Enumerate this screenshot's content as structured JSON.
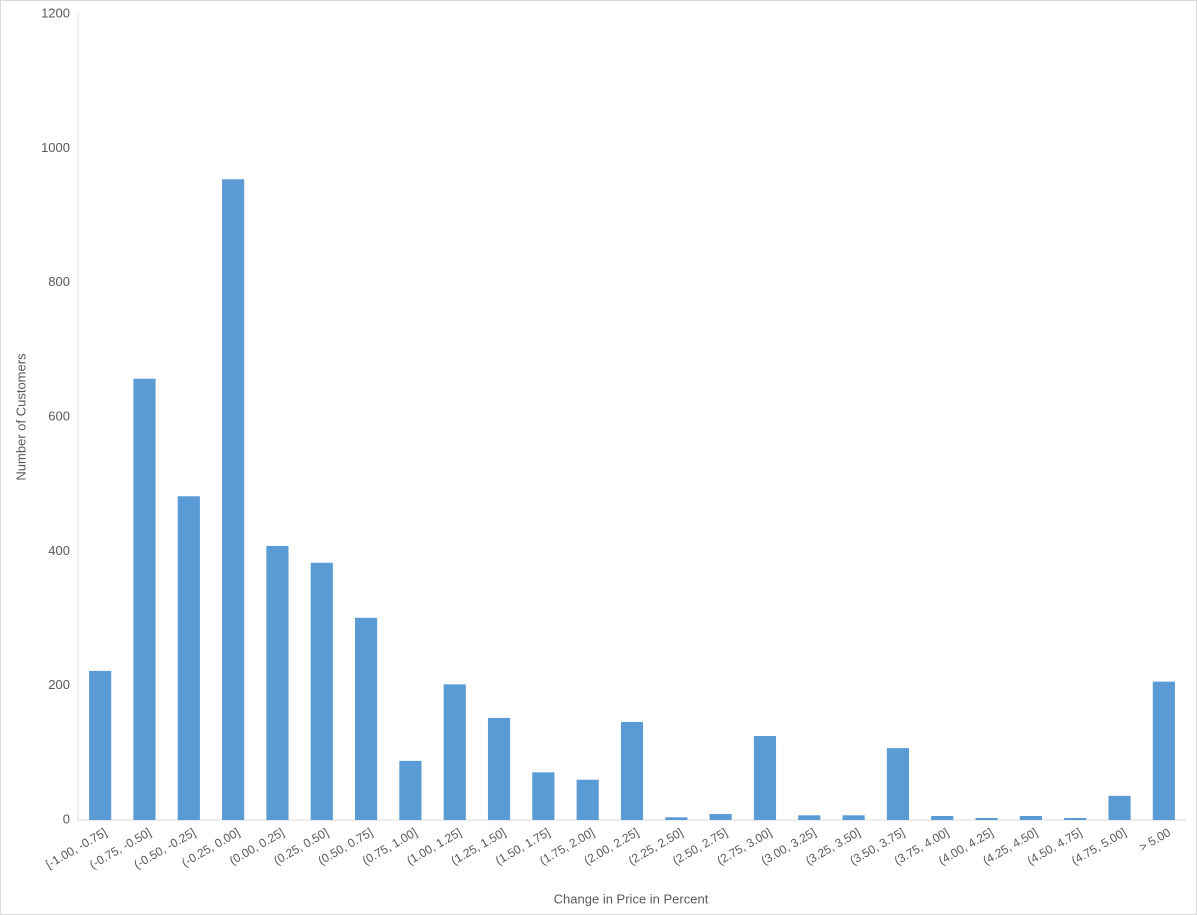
{
  "chart_data": {
    "type": "bar",
    "x_label": "Change in Price in Percent",
    "y_label": "Number of Customers",
    "categories": [
      "[-1.00, -0.75]",
      "(-0.75, -0.50]",
      "(-0.50, -0.25]",
      "(-0.25, 0.00]",
      "(0.00, 0.25]",
      "(0.25, 0.50]",
      "(0.50, 0.75]",
      "(0.75, 1.00]",
      "(1.00, 1.25]",
      "(1.25, 1.50]",
      "(1.50, 1.75]",
      "(1.75, 2.00]",
      "(2.00, 2.25]",
      "(2.25, 2.50]",
      "(2.50, 2.75]",
      "(2.75, 3.00]",
      "(3.00, 3.25]",
      "(3.25, 3.50]",
      "(3.50, 3.75]",
      "(3.75, 4.00]",
      "(4.00, 4.25]",
      "(4.25, 4.50]",
      "(4.50, 4.75]",
      "(4.75, 5.00]",
      "> 5.00"
    ],
    "values": [
      222,
      657,
      482,
      954,
      408,
      383,
      301,
      88,
      202,
      152,
      71,
      60,
      146,
      4,
      9,
      125,
      7,
      7,
      107,
      6,
      3,
      6,
      3,
      36,
      206
    ],
    "color": "#5b9bd5",
    "ylim": [
      0,
      1200
    ],
    "yticks": [
      0,
      200,
      400,
      600,
      800,
      1000,
      1200
    ],
    "grid": false
  }
}
